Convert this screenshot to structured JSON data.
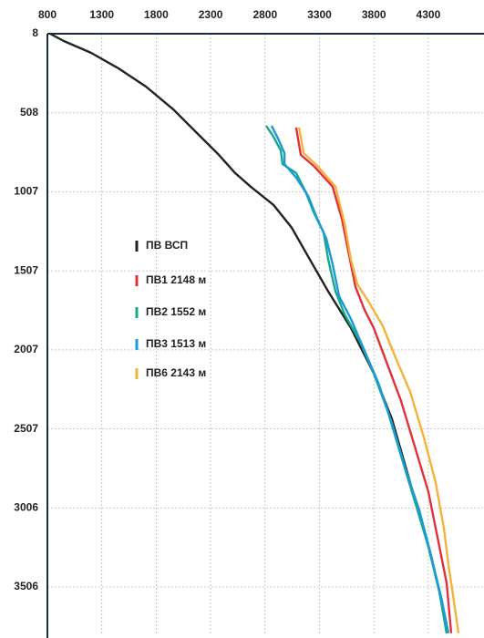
{
  "chart_data": {
    "type": "line",
    "xlim": [
      800,
      4800
    ],
    "xticks": [
      800,
      1300,
      1800,
      2300,
      2800,
      3300,
      3800,
      4300
    ],
    "ylim": [
      8,
      3800
    ],
    "yticks": [
      8,
      508,
      1007,
      1507,
      2007,
      2507,
      3006,
      3506
    ],
    "y_inverted": true,
    "x_axis_position": "top",
    "grid": true,
    "legend_position": "center-left",
    "series": [
      {
        "name": "ПВ ВСП",
        "color": "#222222",
        "x": [
          825,
          951,
          1202,
          1453,
          1705,
          1956,
          2165,
          2375,
          2525,
          2668,
          2877,
          3045,
          3212,
          3380,
          3589,
          3799,
          3966,
          4133,
          4301,
          4426,
          4468
        ],
        "values": [
          8,
          54,
          129,
          227,
          342,
          486,
          630,
          774,
          889,
          975,
          1090,
          1235,
          1436,
          1638,
          1868,
          2156,
          2444,
          2847,
          3250,
          3596,
          3798
        ]
      },
      {
        "name": "ПВ1 2148 м",
        "color": "#e0303a",
        "x": [
          3086,
          3128,
          3254,
          3421,
          3505,
          3572,
          3631,
          3714,
          3798,
          3924,
          4049,
          4175,
          4301,
          4385,
          4468,
          4510
        ],
        "values": [
          601,
          774,
          849,
          975,
          1177,
          1408,
          1609,
          1753,
          1868,
          2099,
          2329,
          2617,
          2905,
          3193,
          3481,
          3798
        ]
      },
      {
        "name": "ПВ2 1552 м",
        "color": "#1aa88a",
        "x": [
          2810,
          2877,
          2944,
          2961,
          3086,
          3170,
          3254,
          3338,
          3380,
          3447,
          3530,
          3673,
          3798,
          3924,
          4049,
          4175,
          4301,
          4401,
          4468
        ],
        "values": [
          590,
          659,
          745,
          832,
          889,
          1004,
          1148,
          1263,
          1436,
          1638,
          1782,
          1955,
          2156,
          2387,
          2675,
          2963,
          3250,
          3538,
          3798
        ]
      },
      {
        "name": "ПВ3 1513 м",
        "color": "#1a9ad6",
        "x": [
          2860,
          2919,
          2978,
          2978,
          3086,
          3195,
          3279,
          3363,
          3421,
          3480,
          3589,
          3714,
          3840,
          3966,
          4091,
          4217,
          4326,
          4426,
          4485
        ],
        "values": [
          590,
          670,
          763,
          832,
          918,
          1033,
          1177,
          1304,
          1465,
          1667,
          1811,
          2012,
          2214,
          2473,
          2761,
          3020,
          3308,
          3596,
          3798
        ]
      },
      {
        "name": "ПВ6 2143 м",
        "color": "#f5b23a",
        "x": [
          3112,
          3154,
          3279,
          3447,
          3530,
          3589,
          3648,
          3756,
          3882,
          4008,
          4133,
          4259,
          4368,
          4443,
          4485,
          4535,
          4577
        ],
        "values": [
          601,
          763,
          843,
          975,
          1206,
          1436,
          1592,
          1707,
          1857,
          2070,
          2272,
          2560,
          2847,
          3135,
          3366,
          3596,
          3798
        ]
      }
    ]
  }
}
